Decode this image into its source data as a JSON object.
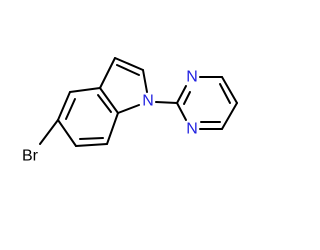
{
  "atoms": [
    {
      "label": "Br"
    },
    {
      "label": "N"
    },
    {
      "label": "N"
    },
    {
      "label": "N"
    }
  ]
}
